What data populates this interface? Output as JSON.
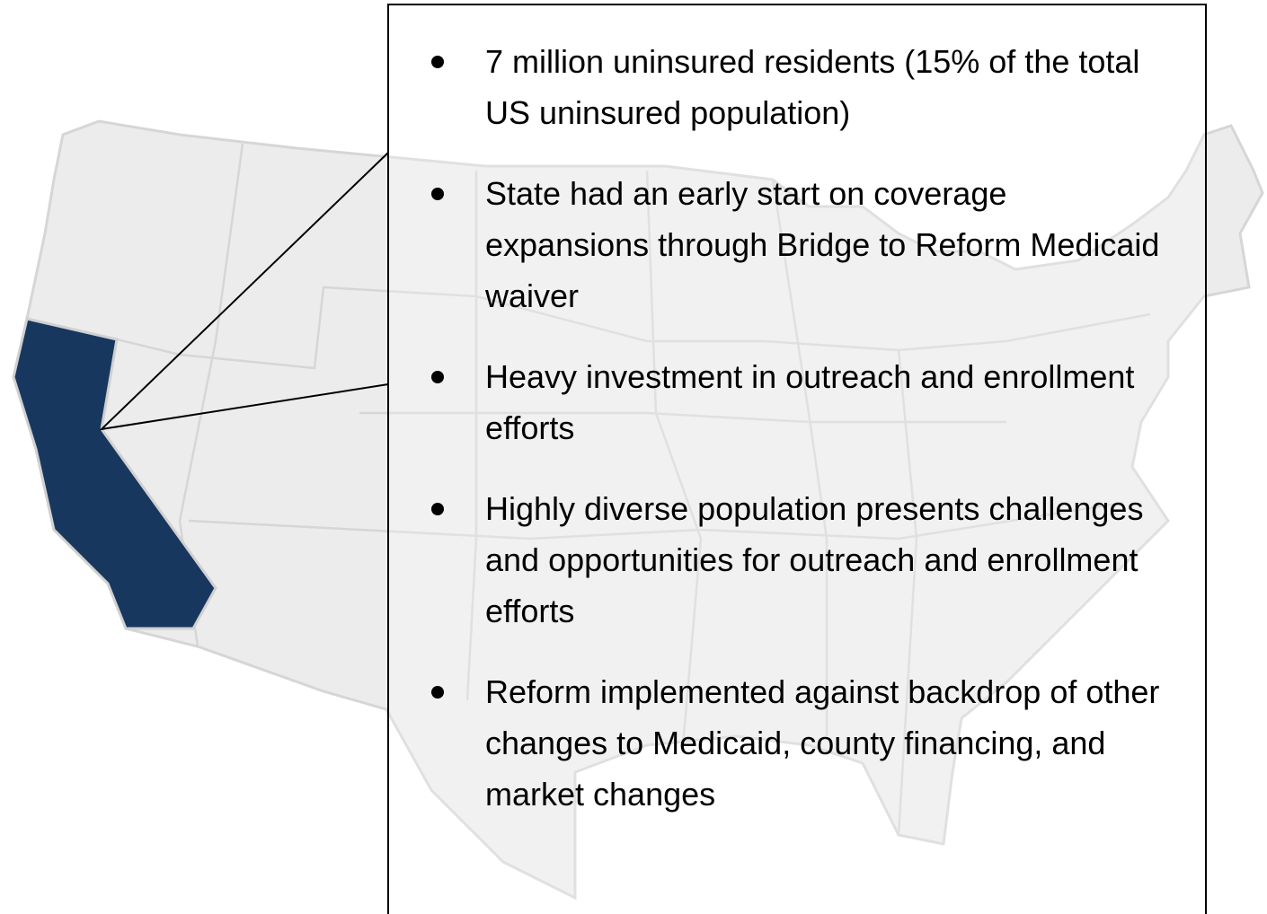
{
  "bullets": [
    "7 million uninsured residents (15% of the total US uninsured population)",
    "State had an early start on coverage expansions through Bridge to Reform Medicaid waiver",
    "Heavy investment in outreach and enrollment efforts",
    "Highly diverse population presents challenges and opportunities for outreach and enrollment efforts",
    "Reform implemented against backdrop of other changes to Medicaid, county financing, and market changes"
  ]
}
